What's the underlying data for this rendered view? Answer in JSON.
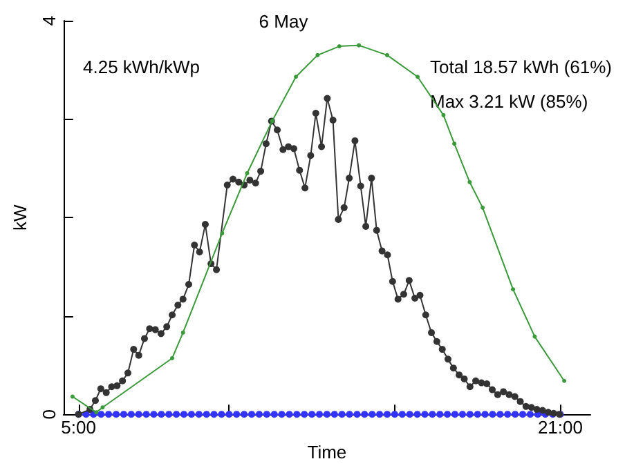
{
  "chart_data": {
    "type": "line",
    "title": "6 May",
    "xlabel": "Time",
    "ylabel": "kW",
    "annotations": [
      "4.25 kWh/kWp",
      "Total 18.57 kWh (61%)",
      "Max 3.21 kW (85%)"
    ],
    "xlim": [
      4.5,
      22
    ],
    "xticks": [
      {
        "value": 5,
        "label": "5:00"
      },
      {
        "value": 10,
        "label": null
      },
      {
        "value": 15.5,
        "label": null
      },
      {
        "value": 21,
        "label": "21:00"
      }
    ],
    "ylim": [
      0,
      4
    ],
    "yticks": [
      0,
      {
        "value": 1,
        "label": null
      },
      {
        "value": 2,
        "label": null
      },
      {
        "value": 3,
        "label": null
      },
      4
    ],
    "grid": false,
    "marker": "circle",
    "line_style": "solid",
    "series": [
      {
        "color": "#3a9a3a",
        "x": [
          4.8,
          5.59,
          5.8,
          8.11,
          8.47,
          9.77,
          10.6,
          11.43,
          12.22,
          12.94,
          13.66,
          14.31,
          15.25,
          16.26,
          17.12,
          17.48,
          17.99,
          18.42,
          19.43,
          20.15,
          21.13
        ],
        "values": [
          0.18,
          0.02,
          0.07,
          0.57,
          0.83,
          1.84,
          2.45,
          2.98,
          3.43,
          3.65,
          3.74,
          3.75,
          3.65,
          3.43,
          3.04,
          2.75,
          2.36,
          2.1,
          1.27,
          0.79,
          0.34
        ]
      },
      {
        "color": "#333333",
        "x": [
          5.0,
          5.38,
          5.56,
          5.74,
          5.92,
          6.1,
          6.28,
          6.46,
          6.64,
          6.83,
          7.0,
          7.19,
          7.36,
          7.55,
          7.74,
          7.93,
          8.11,
          8.3,
          8.47,
          8.66,
          8.85,
          9.02,
          9.21,
          9.4,
          9.58,
          9.94,
          10.13,
          10.32,
          10.5,
          10.69,
          10.88,
          11.05,
          11.23,
          11.41,
          11.6,
          11.79,
          11.97,
          12.15,
          12.34,
          12.52,
          12.71,
          12.88,
          13.07,
          13.26,
          13.45,
          13.63,
          13.82,
          13.99,
          14.18,
          14.37,
          14.54,
          14.73,
          14.9,
          15.08,
          15.26,
          15.43,
          15.61,
          15.8,
          15.98,
          16.17,
          16.34,
          16.53,
          16.72,
          16.9,
          17.08,
          17.27,
          17.45,
          17.64,
          17.81,
          18.0,
          18.19,
          18.38,
          18.56,
          18.74,
          18.92,
          19.11,
          19.3,
          19.49,
          19.67,
          19.86,
          20.04,
          20.22,
          20.41,
          20.6,
          20.78,
          20.97
        ],
        "values": [
          0,
          0.05,
          0.14,
          0.26,
          0.22,
          0.28,
          0.29,
          0.34,
          0.42,
          0.66,
          0.6,
          0.77,
          0.87,
          0.86,
          0.82,
          0.89,
          1.01,
          1.11,
          1.17,
          1.32,
          1.72,
          1.65,
          1.93,
          1.53,
          1.47,
          2.33,
          2.39,
          2.36,
          2.33,
          2.38,
          2.35,
          2.47,
          2.75,
          2.98,
          2.89,
          2.69,
          2.72,
          2.7,
          2.48,
          2.3,
          2.63,
          3.06,
          2.72,
          3.21,
          2.99,
          1.98,
          2.1,
          2.4,
          2.78,
          2.32,
          1.91,
          2.4,
          1.87,
          1.66,
          1.62,
          1.35,
          1.17,
          1.22,
          1.36,
          1.18,
          1.21,
          1.01,
          0.83,
          0.74,
          0.66,
          0.56,
          0.47,
          0.4,
          0.36,
          0.28,
          0.34,
          0.32,
          0.31,
          0.25,
          0.2,
          0.23,
          0.2,
          0.18,
          0.13,
          0.08,
          0.07,
          0.05,
          0.04,
          0.02,
          0.01,
          0
        ]
      },
      {
        "color": "#3333ff",
        "x": [
          5,
          5.25,
          5.5,
          5.75,
          6,
          6.25,
          6.5,
          6.75,
          7,
          7.25,
          7.5,
          7.75,
          8,
          8.25,
          8.5,
          8.75,
          9,
          9.25,
          9.5,
          9.75,
          10,
          10.25,
          10.5,
          10.75,
          11,
          11.25,
          11.5,
          11.75,
          12,
          12.25,
          12.5,
          12.75,
          13,
          13.25,
          13.5,
          13.75,
          14,
          14.25,
          14.5,
          14.75,
          15,
          15.25,
          15.5,
          15.75,
          16,
          16.25,
          16.5,
          16.75,
          17,
          17.25,
          17.5,
          17.75,
          18,
          18.25,
          18.5,
          18.75,
          19,
          19.25,
          19.5,
          19.75,
          20,
          20.25,
          20.5,
          20.75,
          21
        ],
        "values": [
          0,
          0,
          0,
          0,
          0,
          0,
          0,
          0,
          0,
          0,
          0,
          0,
          0,
          0,
          0,
          0,
          0,
          0,
          0,
          0,
          0,
          0,
          0,
          0,
          0,
          0,
          0,
          0,
          0,
          0,
          0,
          0,
          0,
          0,
          0,
          0,
          0,
          0,
          0,
          0,
          0,
          0,
          0,
          0,
          0,
          0,
          0,
          0,
          0,
          0,
          0,
          0,
          0,
          0,
          0,
          0,
          0,
          0,
          0,
          0,
          0,
          0,
          0,
          0,
          0
        ]
      }
    ]
  }
}
